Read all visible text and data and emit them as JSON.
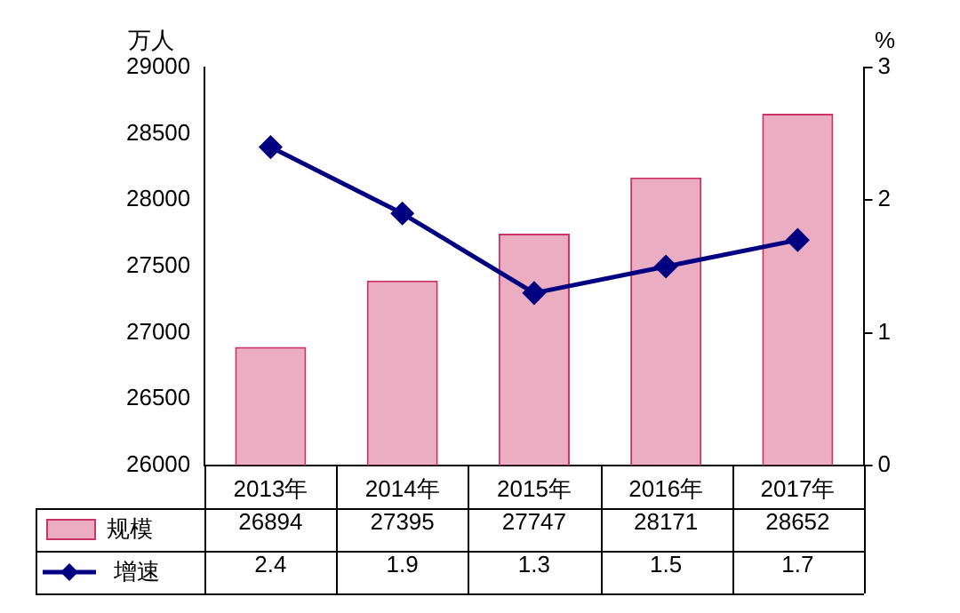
{
  "chart_data": {
    "type": "bar",
    "ylabel": "万人",
    "y2label": "%",
    "categories": [
      "2013年",
      "2014年",
      "2015年",
      "2016年",
      "2017年"
    ],
    "series": [
      {
        "name": "规模",
        "color": "#cc3366",
        "values": [
          26894,
          27395,
          27747,
          28171,
          28652
        ]
      },
      {
        "name": "增速",
        "type": "line",
        "axis": "y2",
        "color": "#000080",
        "marker": "diamond",
        "values": [
          2.4,
          1.9,
          1.3,
          1.5,
          1.7
        ]
      }
    ],
    "ylim": [
      26000,
      29000
    ],
    "yticks": [
      26000,
      26500,
      27000,
      27500,
      28000,
      28500,
      29000
    ],
    "y2lim": [
      0,
      3
    ],
    "y2ticks": [
      0,
      1,
      2,
      3
    ],
    "grid": false,
    "legend": "bottom",
    "data_labels": true
  }
}
